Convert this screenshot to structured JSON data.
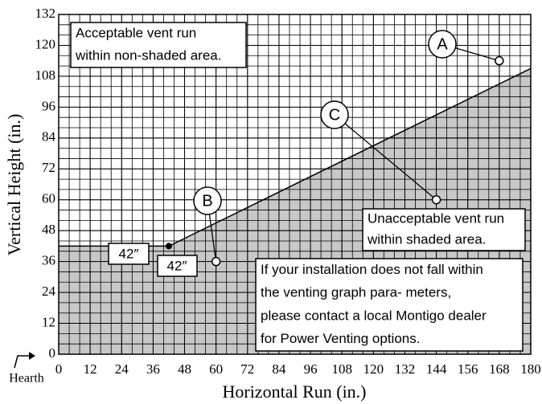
{
  "chart_data": {
    "type": "area",
    "xlabel": "Horizontal Run (in.)",
    "ylabel": "Vertical Height (in.)",
    "xlim": [
      0,
      180
    ],
    "ylim": [
      0,
      132
    ],
    "xticks": [
      0,
      12,
      24,
      36,
      48,
      60,
      72,
      84,
      96,
      108,
      120,
      132,
      144,
      156,
      168,
      180
    ],
    "yticks": [
      0,
      12,
      24,
      36,
      48,
      60,
      72,
      84,
      96,
      108,
      120,
      132
    ],
    "grid": true,
    "minor_grid_step": 4,
    "x": [
      0,
      42,
      180
    ],
    "values": [
      42,
      42,
      111
    ],
    "color": "#c8c8c8",
    "corner": {
      "x": 42,
      "y": 42,
      "value_labels": [
        "42″",
        "42″"
      ]
    },
    "points": [
      {
        "label": "A",
        "x": 168,
        "y": 114
      },
      {
        "label": "B",
        "x": 60,
        "y": 36
      },
      {
        "label": "C",
        "x": 144,
        "y": 60
      }
    ],
    "annotations": [
      [
        "Acceptable vent run",
        "within non-shaded area."
      ],
      [
        "Unacceptable vent run",
        "within shaded area."
      ],
      [
        "If your installation does not fall within",
        "the venting graph para- meters,",
        "please contact a local Montigo dealer",
        "for Power Venting options."
      ]
    ],
    "hearth": "Hearth"
  }
}
